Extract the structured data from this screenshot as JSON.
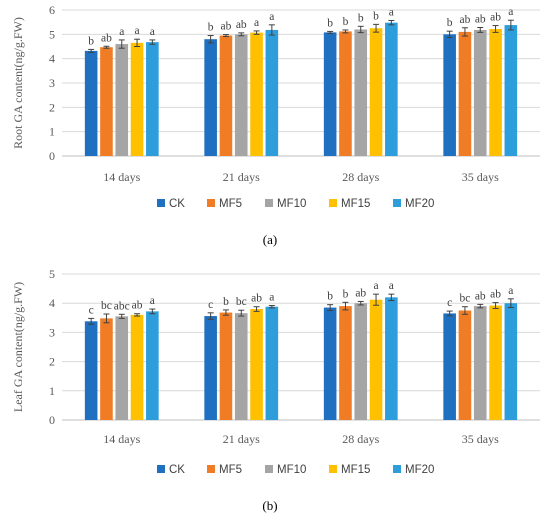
{
  "colors": {
    "CK": "#1f70c1",
    "MF5": "#f07d25",
    "MF10": "#a5a5a5",
    "MF15": "#ffc000",
    "MF20": "#2e9ddb"
  },
  "chart_data": [
    {
      "type": "bar",
      "panel_label": "(a)",
      "ylabel": "Root GA content(ng/g.FW)",
      "xlabel": "",
      "ylim": [
        0,
        6
      ],
      "yticks": [
        "0",
        "1",
        "2",
        "3",
        "4",
        "5",
        "6"
      ],
      "grid": true,
      "legend_position": "bottom",
      "categories": [
        "14 days",
        "21 days",
        "28 days",
        "35 days"
      ],
      "series": [
        {
          "name": "CK",
          "values": [
            4.32,
            4.8,
            5.08,
            5.0
          ],
          "errors": [
            0.06,
            0.15,
            0.04,
            0.13
          ],
          "labels": [
            "b",
            "b",
            "b",
            "b"
          ]
        },
        {
          "name": "MF5",
          "values": [
            4.47,
            4.95,
            5.12,
            5.1
          ],
          "errors": [
            0.04,
            0.04,
            0.06,
            0.17
          ],
          "labels": [
            "ab",
            "ab",
            "b",
            "ab"
          ]
        },
        {
          "name": "MF10",
          "values": [
            4.6,
            5.0,
            5.2,
            5.18
          ],
          "errors": [
            0.17,
            0.06,
            0.13,
            0.1
          ],
          "labels": [
            "a",
            "ab",
            "b",
            "ab"
          ]
        },
        {
          "name": "MF15",
          "values": [
            4.65,
            5.07,
            5.25,
            5.22
          ],
          "errors": [
            0.15,
            0.07,
            0.16,
            0.14
          ],
          "labels": [
            "a",
            "a",
            "b",
            "ab"
          ]
        },
        {
          "name": "MF20",
          "values": [
            4.68,
            5.18,
            5.48,
            5.38
          ],
          "errors": [
            0.09,
            0.21,
            0.09,
            0.2
          ],
          "labels": [
            "a",
            "a",
            "a",
            "a"
          ]
        }
      ]
    },
    {
      "type": "bar",
      "panel_label": "(b)",
      "ylabel": "Leaf GA content(ng/g.FW)",
      "xlabel": "",
      "ylim": [
        0,
        5
      ],
      "yticks": [
        "0",
        "1",
        "2",
        "3",
        "4",
        "5"
      ],
      "grid": true,
      "legend_position": "bottom",
      "categories": [
        "14 days",
        "21 days",
        "28 days",
        "35 days"
      ],
      "series": [
        {
          "name": "CK",
          "values": [
            3.38,
            3.56,
            3.85,
            3.65
          ],
          "errors": [
            0.1,
            0.11,
            0.1,
            0.08
          ],
          "labels": [
            "c",
            "c",
            "b",
            "c"
          ]
        },
        {
          "name": "MF5",
          "values": [
            3.48,
            3.68,
            3.9,
            3.75
          ],
          "errors": [
            0.15,
            0.09,
            0.13,
            0.13
          ],
          "labels": [
            "bc",
            "b",
            "b",
            "bc"
          ]
        },
        {
          "name": "MF10",
          "values": [
            3.55,
            3.66,
            4.0,
            3.9
          ],
          "errors": [
            0.07,
            0.1,
            0.06,
            0.06
          ],
          "labels": [
            "abc",
            "bc",
            "ab",
            "ab"
          ]
        },
        {
          "name": "MF15",
          "values": [
            3.6,
            3.8,
            4.12,
            3.92
          ],
          "errors": [
            0.04,
            0.08,
            0.19,
            0.1
          ],
          "labels": [
            "ab",
            "ab",
            "a",
            "ab"
          ]
        },
        {
          "name": "MF20",
          "values": [
            3.72,
            3.88,
            4.2,
            4.0
          ],
          "errors": [
            0.08,
            0.04,
            0.11,
            0.15
          ],
          "labels": [
            "a",
            "a",
            "a",
            "a"
          ]
        }
      ]
    }
  ]
}
